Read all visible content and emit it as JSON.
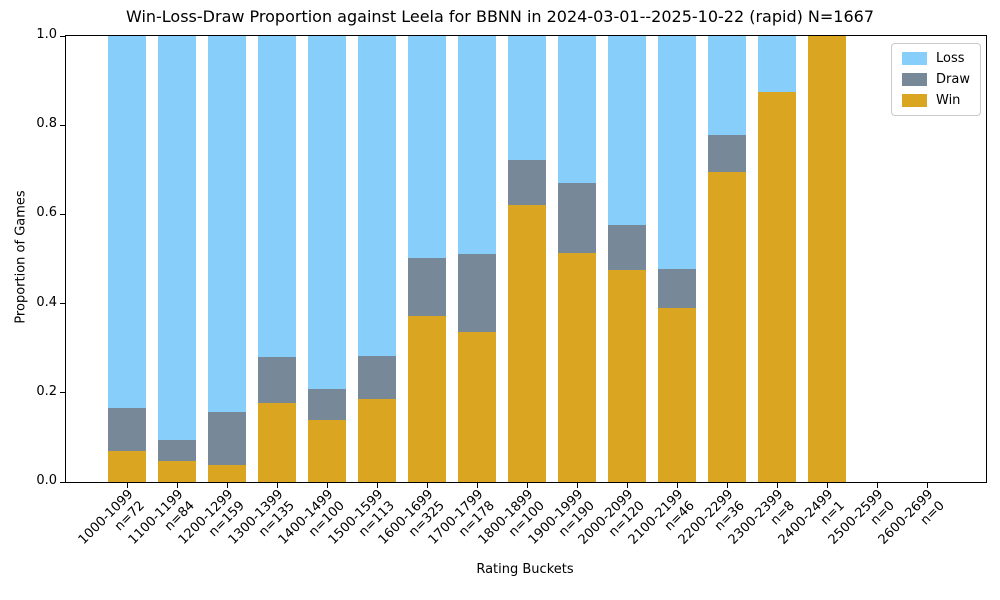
{
  "chart_data": {
    "type": "bar",
    "stacked": true,
    "title": "Win-Loss-Draw Proportion against Leela for BBNN in 2024-03-01--2025-10-22 (rapid) N=1667",
    "xlabel": "Rating Buckets",
    "ylabel": "Proportion of Games",
    "total_n": 1667,
    "ylim": [
      0.0,
      1.0
    ],
    "yticks": [
      0.0,
      0.2,
      0.4,
      0.6,
      0.8,
      1.0
    ],
    "grid": false,
    "background": "#FFFFFF",
    "axis_color": "#000000",
    "categories": [
      "1000-1099",
      "1100-1199",
      "1200-1299",
      "1300-1399",
      "1400-1499",
      "1500-1599",
      "1600-1699",
      "1700-1799",
      "1800-1899",
      "1900-1999",
      "2000-2099",
      "2100-2199",
      "2200-2299",
      "2300-2399",
      "2400-2499",
      "2500-2599",
      "2600-2699"
    ],
    "counts": [
      72,
      84,
      159,
      135,
      100,
      113,
      325,
      178,
      100,
      190,
      120,
      46,
      36,
      8,
      1,
      0,
      0
    ],
    "n_labels": [
      "n=72",
      "n=84",
      "n=159",
      "n=135",
      "n=100",
      "n=113",
      "n=325",
      "n=178",
      "n=100",
      "n=190",
      "n=120",
      "n=46",
      "n=36",
      "n=8",
      "n=1",
      "n=0",
      "n=0"
    ],
    "legend": {
      "position": "upper right",
      "entries": [
        "Loss",
        "Draw",
        "Win"
      ]
    },
    "stack_order_bottom_to_top": [
      "Win",
      "Draw",
      "Loss"
    ],
    "series": [
      {
        "name": "Loss",
        "color": "#87CEFA",
        "values": [
          0.833,
          0.905,
          0.843,
          0.719,
          0.79,
          0.717,
          0.498,
          0.489,
          0.28,
          0.328,
          0.425,
          0.522,
          0.222,
          0.125,
          0.0,
          0.0,
          0.0
        ]
      },
      {
        "name": "Draw",
        "color": "#778899",
        "values": [
          0.097,
          0.048,
          0.119,
          0.104,
          0.07,
          0.097,
          0.129,
          0.174,
          0.1,
          0.158,
          0.1,
          0.087,
          0.083,
          0.0,
          0.0,
          0.0,
          0.0
        ]
      },
      {
        "name": "Win",
        "color": "#DAA520",
        "values": [
          0.069,
          0.048,
          0.038,
          0.178,
          0.14,
          0.186,
          0.372,
          0.337,
          0.62,
          0.514,
          0.475,
          0.391,
          0.694,
          0.875,
          1.0,
          0.0,
          0.0
        ]
      }
    ]
  }
}
